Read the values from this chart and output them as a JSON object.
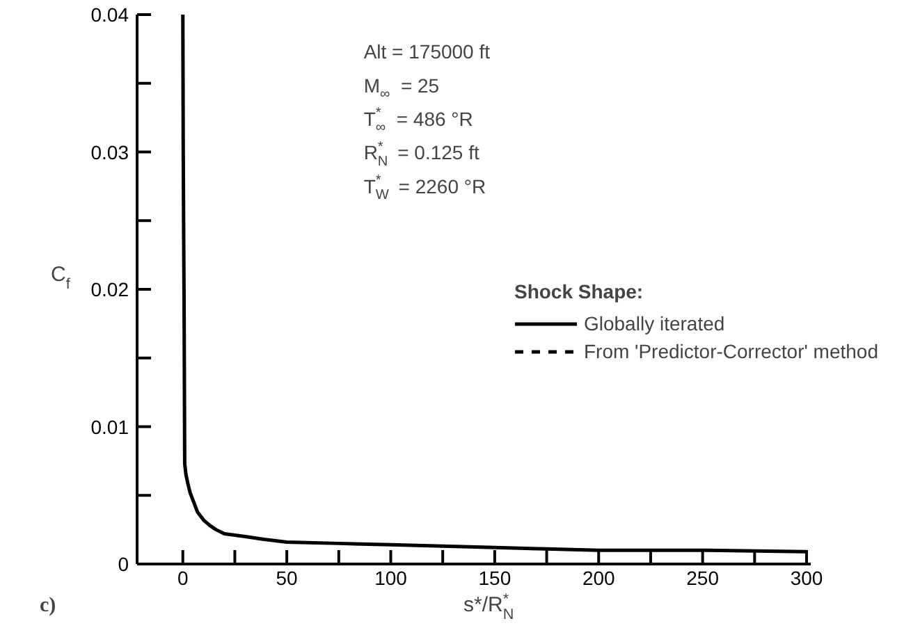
{
  "chart_data": {
    "type": "line",
    "xlabel": "s*/R$^{*}$$_{N}$",
    "ylabel": "C$_{f}$",
    "legend_title": "Shock Shape:",
    "annotations": [
      "Alt = 175000 ft",
      "M$_{∞}$ = 25",
      "T$^{*}$$_{∞}$ = 486 °R",
      "R$^{*}$$_{N}$ = 0.125 ft",
      "T$^{*}$$_{W}$ = 2260 °R",
      "c)"
    ],
    "x": [
      0,
      0.2,
      0.4,
      0.6,
      0.9,
      1.5,
      2.5,
      3.5,
      5,
      7,
      10,
      13,
      16,
      20,
      25,
      30,
      39,
      50,
      75,
      100,
      125,
      150,
      175,
      200,
      250,
      300
    ],
    "series": [
      {
        "name": "Globally iterated",
        "color": "#000000",
        "line_style": "solid",
        "values": [
          0.04,
          0.03,
          0.024,
          0.019,
          0.0073,
          0.0065,
          0.0058,
          0.0052,
          0.0046,
          0.0038,
          0.0032,
          0.0028,
          0.0025,
          0.0022,
          0.0021,
          0.002,
          0.0018,
          0.0016,
          0.0015,
          0.0014,
          0.0013,
          0.0012,
          0.0011,
          0.001,
          0.001,
          0.0009
        ]
      },
      {
        "name": "From 'Predictor-Corrector' method",
        "color": "#000000",
        "line_style": "dashed",
        "values": [
          null,
          null,
          null,
          null,
          null,
          null,
          null,
          null,
          null,
          null,
          null,
          null,
          null,
          null,
          null,
          null,
          null,
          null,
          null,
          null,
          null,
          null,
          null,
          null,
          null,
          null
        ]
      }
    ],
    "xlim": [
      -22,
      302
    ],
    "ylim": [
      0,
      0.04
    ],
    "xticks": [
      0,
      {
        "value": 25,
        "label": null
      },
      50,
      {
        "value": 75,
        "label": null
      },
      100,
      {
        "value": 125,
        "label": null
      },
      150,
      {
        "value": 175,
        "label": null
      },
      200,
      {
        "value": 225,
        "label": null
      },
      250,
      {
        "value": 275,
        "label": null
      },
      300
    ],
    "yticks": [
      0,
      {
        "value": 0.005,
        "label": null
      },
      0.01,
      {
        "value": 0.015,
        "label": null
      },
      0.02,
      {
        "value": 0.025,
        "label": null
      },
      0.03,
      {
        "value": 0.035,
        "label": null
      },
      0.04
    ],
    "grid": false,
    "legend": "right",
    "marker": "none"
  }
}
